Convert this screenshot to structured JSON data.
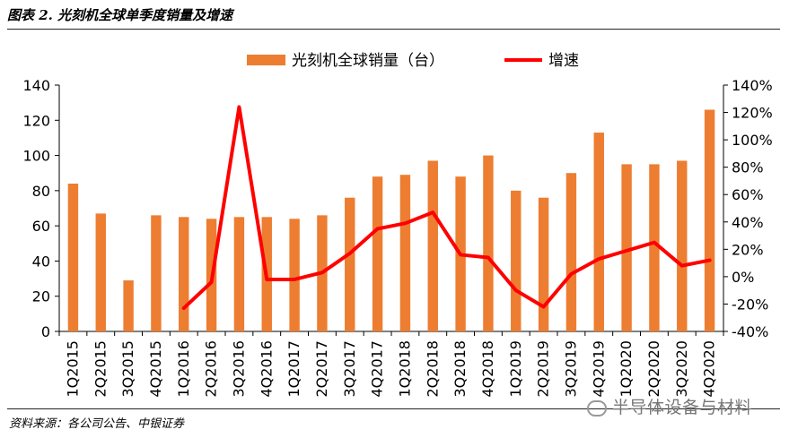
{
  "header": {
    "title": "图表 2. 光刻机全球单季度销量及增速"
  },
  "footer": {
    "source": "资料来源：各公司公告、中银证券"
  },
  "watermark": {
    "text": "半导体设备与材料"
  },
  "colors": {
    "bar": "#ED7D31",
    "line": "#FF0000"
  },
  "chart_data": {
    "type": "bar",
    "categories": [
      "1Q2015",
      "2Q2015",
      "3Q2015",
      "4Q2015",
      "1Q2016",
      "2Q2016",
      "3Q2016",
      "4Q2016",
      "1Q2017",
      "2Q2017",
      "3Q2017",
      "4Q2017",
      "1Q2018",
      "2Q2018",
      "3Q2018",
      "4Q2018",
      "1Q2019",
      "2Q2019",
      "3Q2019",
      "4Q2019",
      "1Q2020",
      "2Q2020",
      "3Q2020",
      "4Q2020"
    ],
    "series": [
      {
        "name": "光刻机全球销量（台）",
        "type": "bar",
        "axis": "left",
        "values": [
          84,
          67,
          29,
          66,
          65,
          64,
          65,
          65,
          64,
          66,
          76,
          88,
          89,
          97,
          88,
          100,
          80,
          76,
          90,
          113,
          95,
          95,
          97,
          126
        ]
      },
      {
        "name": "增速",
        "type": "line",
        "axis": "right",
        "values": [
          null,
          null,
          null,
          null,
          -0.23,
          -0.04,
          1.24,
          -0.02,
          -0.02,
          0.03,
          0.17,
          0.35,
          0.39,
          0.47,
          0.16,
          0.14,
          -0.1,
          -0.22,
          0.02,
          0.13,
          0.19,
          0.25,
          0.08,
          0.12
        ]
      }
    ],
    "ylim_left": [
      0,
      140
    ],
    "yticks_left": [
      "0",
      "20",
      "40",
      "60",
      "80",
      "100",
      "120",
      "140"
    ],
    "ylim_right": [
      -0.4,
      1.4
    ],
    "yticks_right": [
      "-40%",
      "-20%",
      "0%",
      "20%",
      "40%",
      "60%",
      "80%",
      "100%",
      "120%",
      "140%"
    ],
    "grid": false,
    "legend_position": "top"
  }
}
